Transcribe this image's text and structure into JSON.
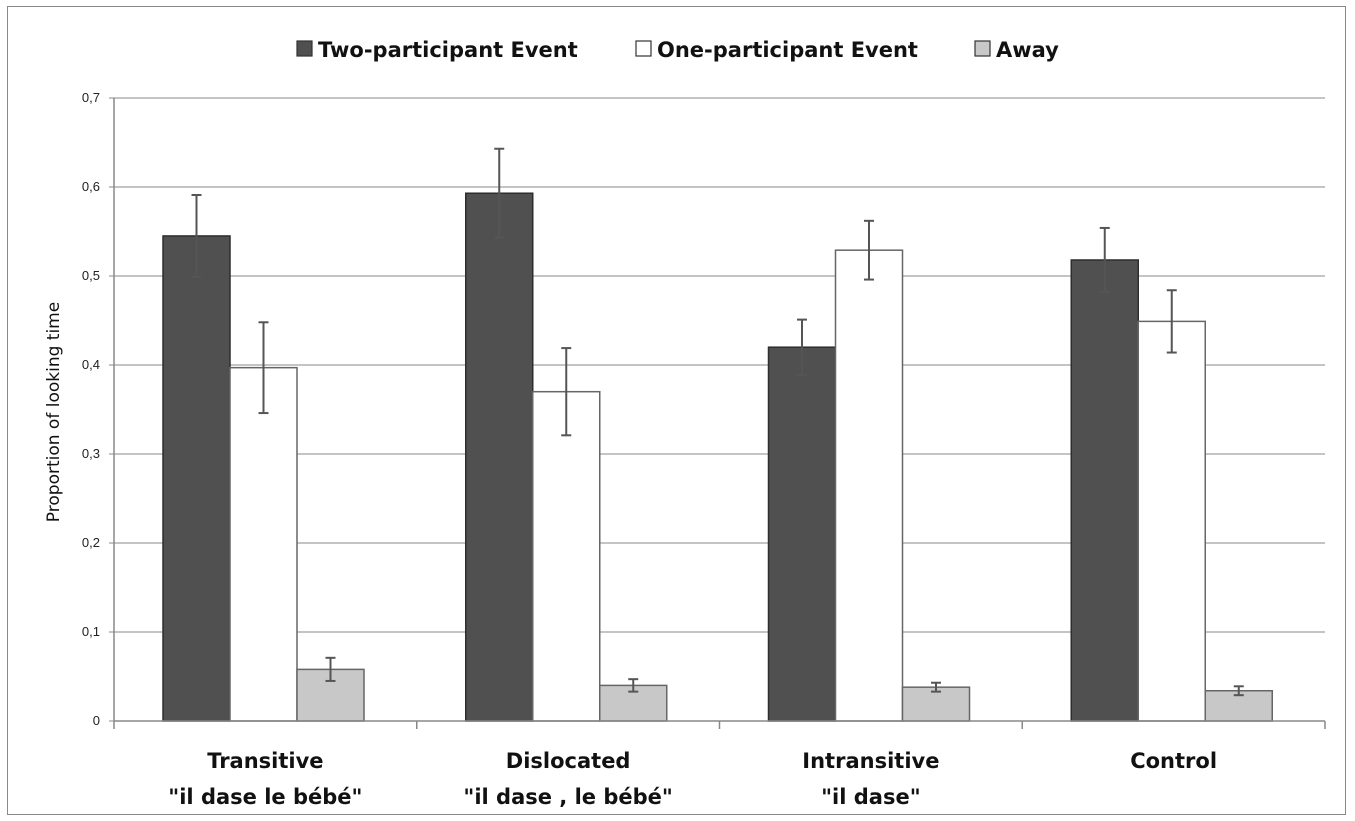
{
  "chart_data": {
    "type": "bar",
    "ylabel": "Proportion of looking time",
    "xlabel": "",
    "ylim": [
      0,
      0.7
    ],
    "yticks": [
      "0",
      "0,1",
      "0,2",
      "0,3",
      "0,4",
      "0,5",
      "0,6",
      "0,7"
    ],
    "ytick_values": [
      0,
      0.1,
      0.2,
      0.3,
      0.4,
      0.5,
      0.6,
      0.7
    ],
    "grid": true,
    "legend_position": "top",
    "categories": [
      [
        "Transitive",
        "\"il dase le bébé\""
      ],
      [
        "Dislocated",
        "\"il dase , le bébé\""
      ],
      [
        "Intransitive",
        "\"il dase\""
      ],
      [
        "Control"
      ]
    ],
    "series": [
      {
        "name": "Two-participant Event",
        "color": "#505050",
        "values": [
          0.545,
          0.593,
          0.42,
          0.518
        ],
        "errors": [
          0.046,
          0.05,
          0.031,
          0.036
        ]
      },
      {
        "name": "One-participant Event",
        "color": "#ffffff",
        "values": [
          0.397,
          0.37,
          0.529,
          0.449
        ],
        "errors": [
          0.051,
          0.049,
          0.033,
          0.035
        ]
      },
      {
        "name": "Away",
        "color": "#c8c8c8",
        "values": [
          0.058,
          0.04,
          0.038,
          0.034
        ],
        "errors": [
          0.013,
          0.007,
          0.005,
          0.005
        ]
      }
    ]
  }
}
